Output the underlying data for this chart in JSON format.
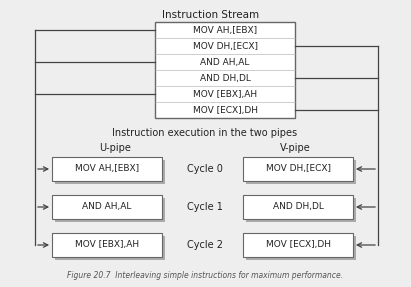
{
  "title": "Instruction Stream",
  "caption": "Figure 20.7  Interleaving simple instructions for maximum performance.",
  "subtitle2": "Instruction execution in the two pipes",
  "stream_instructions": [
    "MOV AH,[EBX]",
    "MOV DH,[ECX]",
    "AND AH,AL",
    "AND DH,DL",
    "MOV [EBX],AH",
    "MOV [ECX],DH"
  ],
  "u_pipe_label": "U-pipe",
  "v_pipe_label": "V-pipe",
  "cycles": [
    "Cycle 0",
    "Cycle 1",
    "Cycle 2"
  ],
  "u_pipe_instr": [
    "MOV AH,[EBX]",
    "AND AH,AL",
    "MOV [EBX],AH"
  ],
  "v_pipe_instr": [
    "MOV DH,[ECX]",
    "AND DH,DL",
    "MOV [ECX],DH"
  ],
  "bg_color": "#eeeeee",
  "box_bg": "#ffffff",
  "box_edge": "#666666",
  "shadow_color": "#aaaaaa",
  "text_color": "#222222",
  "arrow_color": "#444444"
}
